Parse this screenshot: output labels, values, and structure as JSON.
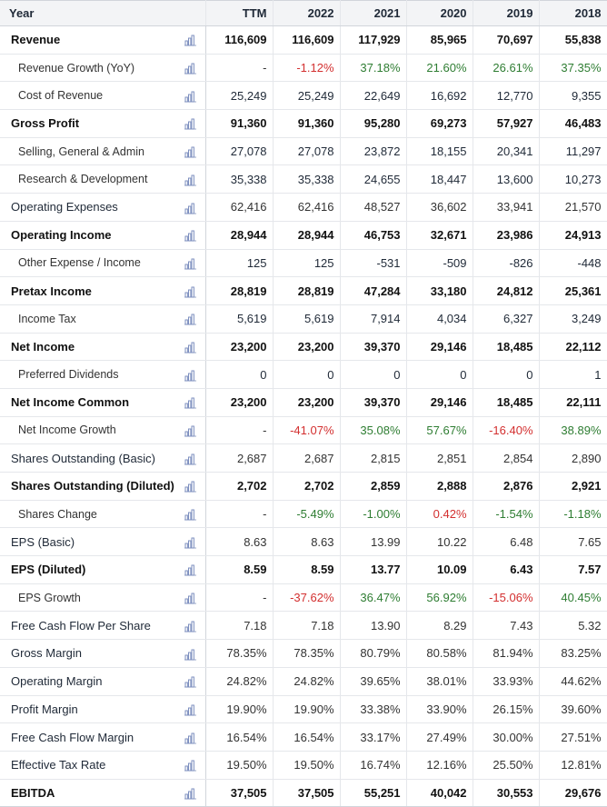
{
  "header": {
    "label": "Year",
    "columns": [
      "TTM",
      "2022",
      "2021",
      "2020",
      "2019",
      "2018"
    ]
  },
  "colors": {
    "positive": "#2e7d32",
    "negative": "#d32f2f",
    "icon": "chart-bar-icon"
  },
  "rows": [
    {
      "label": "Revenue",
      "style": "bold",
      "values": [
        "116,609",
        "116,609",
        "117,929",
        "85,965",
        "70,697",
        "55,838"
      ]
    },
    {
      "label": "Revenue Growth (YoY)",
      "style": "sub",
      "values": [
        "-",
        "-1.12%",
        "37.18%",
        "21.60%",
        "26.61%",
        "37.35%"
      ],
      "tone": [
        "neu",
        "neg",
        "pos",
        "pos",
        "pos",
        "pos"
      ]
    },
    {
      "label": "Cost of Revenue",
      "style": "sub",
      "values": [
        "25,249",
        "25,249",
        "22,649",
        "16,692",
        "12,770",
        "9,355"
      ]
    },
    {
      "label": "Gross Profit",
      "style": "bold",
      "values": [
        "91,360",
        "91,360",
        "95,280",
        "69,273",
        "57,927",
        "46,483"
      ]
    },
    {
      "label": "Selling, General & Admin",
      "style": "sub",
      "values": [
        "27,078",
        "27,078",
        "23,872",
        "18,155",
        "20,341",
        "11,297"
      ]
    },
    {
      "label": "Research & Development",
      "style": "sub",
      "values": [
        "35,338",
        "35,338",
        "24,655",
        "18,447",
        "13,600",
        "10,273"
      ]
    },
    {
      "label": "Operating Expenses",
      "style": "normal",
      "values": [
        "62,416",
        "62,416",
        "48,527",
        "36,602",
        "33,941",
        "21,570"
      ]
    },
    {
      "label": "Operating Income",
      "style": "bold",
      "values": [
        "28,944",
        "28,944",
        "46,753",
        "32,671",
        "23,986",
        "24,913"
      ]
    },
    {
      "label": "Other Expense / Income",
      "style": "sub",
      "values": [
        "125",
        "125",
        "-531",
        "-509",
        "-826",
        "-448"
      ]
    },
    {
      "label": "Pretax Income",
      "style": "bold",
      "values": [
        "28,819",
        "28,819",
        "47,284",
        "33,180",
        "24,812",
        "25,361"
      ]
    },
    {
      "label": "Income Tax",
      "style": "sub",
      "values": [
        "5,619",
        "5,619",
        "7,914",
        "4,034",
        "6,327",
        "3,249"
      ]
    },
    {
      "label": "Net Income",
      "style": "bold",
      "values": [
        "23,200",
        "23,200",
        "39,370",
        "29,146",
        "18,485",
        "22,112"
      ]
    },
    {
      "label": "Preferred Dividends",
      "style": "sub",
      "values": [
        "0",
        "0",
        "0",
        "0",
        "0",
        "1"
      ]
    },
    {
      "label": "Net Income Common",
      "style": "bold",
      "values": [
        "23,200",
        "23,200",
        "39,370",
        "29,146",
        "18,485",
        "22,111"
      ]
    },
    {
      "label": "Net Income Growth",
      "style": "sub",
      "values": [
        "-",
        "-41.07%",
        "35.08%",
        "57.67%",
        "-16.40%",
        "38.89%"
      ],
      "tone": [
        "neu",
        "neg",
        "pos",
        "pos",
        "neg",
        "pos"
      ]
    },
    {
      "label": "Shares Outstanding (Basic)",
      "style": "normal",
      "values": [
        "2,687",
        "2,687",
        "2,815",
        "2,851",
        "2,854",
        "2,890"
      ]
    },
    {
      "label": "Shares Outstanding (Diluted)",
      "style": "bold",
      "values": [
        "2,702",
        "2,702",
        "2,859",
        "2,888",
        "2,876",
        "2,921"
      ]
    },
    {
      "label": "Shares Change",
      "style": "sub",
      "values": [
        "-",
        "-5.49%",
        "-1.00%",
        "0.42%",
        "-1.54%",
        "-1.18%"
      ],
      "tone": [
        "neu",
        "pos",
        "pos",
        "neg",
        "pos",
        "pos"
      ]
    },
    {
      "label": "EPS (Basic)",
      "style": "normal",
      "values": [
        "8.63",
        "8.63",
        "13.99",
        "10.22",
        "6.48",
        "7.65"
      ]
    },
    {
      "label": "EPS (Diluted)",
      "style": "bold",
      "values": [
        "8.59",
        "8.59",
        "13.77",
        "10.09",
        "6.43",
        "7.57"
      ]
    },
    {
      "label": "EPS Growth",
      "style": "sub",
      "values": [
        "-",
        "-37.62%",
        "36.47%",
        "56.92%",
        "-15.06%",
        "40.45%"
      ],
      "tone": [
        "neu",
        "neg",
        "pos",
        "pos",
        "neg",
        "pos"
      ]
    },
    {
      "label": "Free Cash Flow Per Share",
      "style": "normal",
      "values": [
        "7.18",
        "7.18",
        "13.90",
        "8.29",
        "7.43",
        "5.32"
      ]
    },
    {
      "label": "Gross Margin",
      "style": "normal",
      "values": [
        "78.35%",
        "78.35%",
        "80.79%",
        "80.58%",
        "81.94%",
        "83.25%"
      ]
    },
    {
      "label": "Operating Margin",
      "style": "normal",
      "values": [
        "24.82%",
        "24.82%",
        "39.65%",
        "38.01%",
        "33.93%",
        "44.62%"
      ]
    },
    {
      "label": "Profit Margin",
      "style": "normal",
      "values": [
        "19.90%",
        "19.90%",
        "33.38%",
        "33.90%",
        "26.15%",
        "39.60%"
      ]
    },
    {
      "label": "Free Cash Flow Margin",
      "style": "normal",
      "values": [
        "16.54%",
        "16.54%",
        "33.17%",
        "27.49%",
        "30.00%",
        "27.51%"
      ]
    },
    {
      "label": "Effective Tax Rate",
      "style": "normal",
      "values": [
        "19.50%",
        "19.50%",
        "16.74%",
        "12.16%",
        "25.50%",
        "12.81%"
      ]
    },
    {
      "label": "EBITDA",
      "style": "bold",
      "values": [
        "37,505",
        "37,505",
        "55,251",
        "40,042",
        "30,553",
        "29,676"
      ]
    }
  ]
}
